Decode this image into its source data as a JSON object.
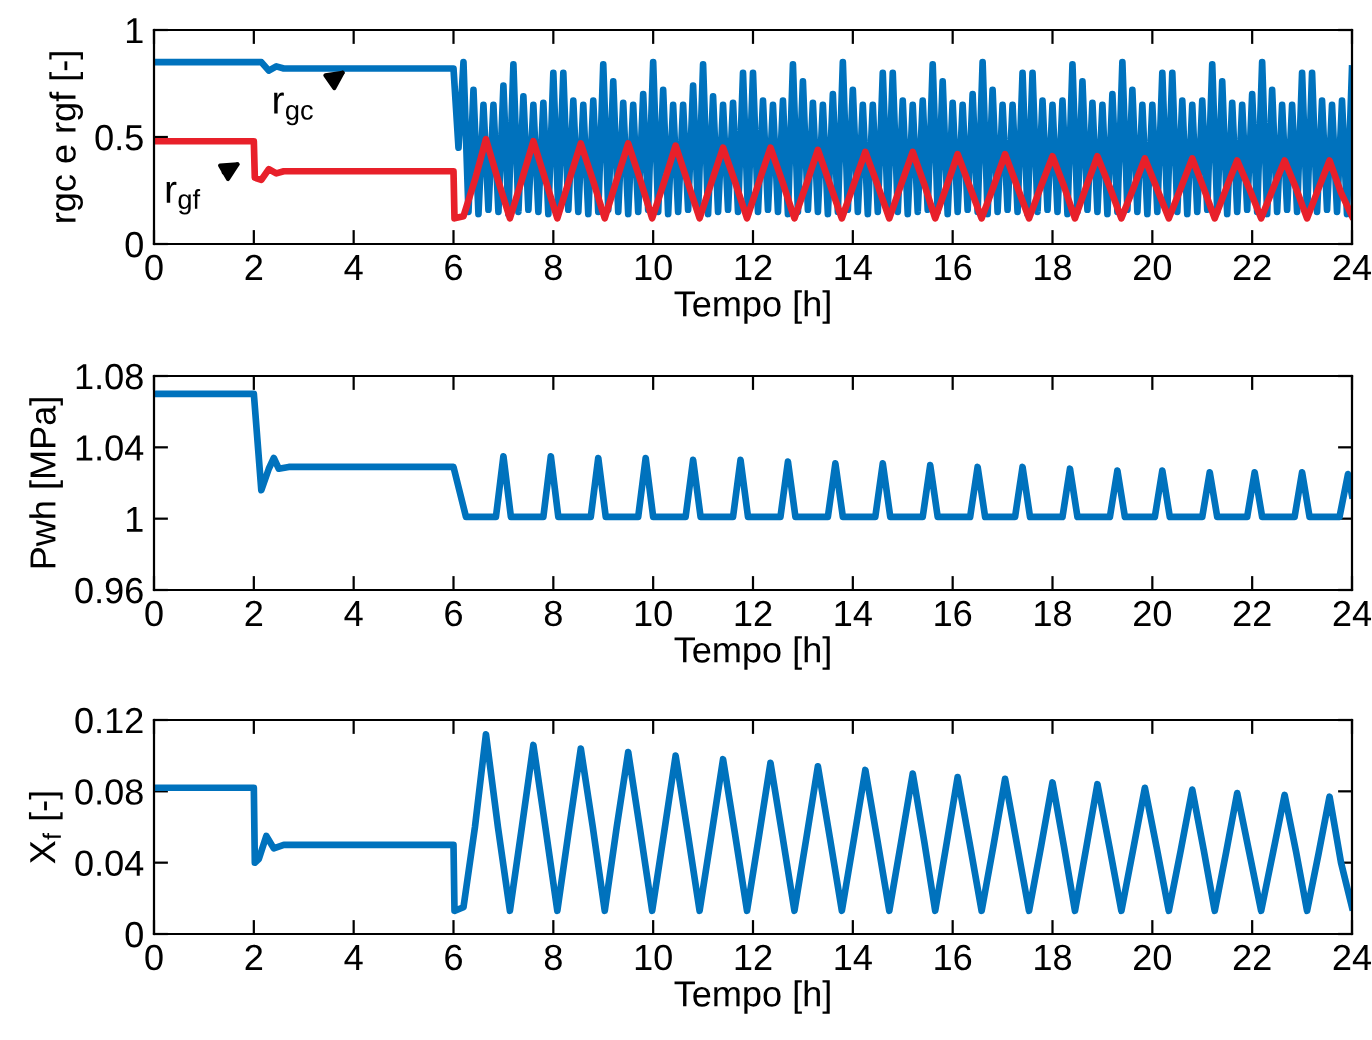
{
  "chart_data": [
    {
      "type": "line",
      "xlabel": "Tempo [h]",
      "ylabel": "rgc e rgf [-]",
      "xlim": [
        0,
        24
      ],
      "xticks": [
        0,
        2,
        4,
        6,
        8,
        10,
        12,
        14,
        16,
        18,
        20,
        22,
        24
      ],
      "ylim": [
        0,
        1
      ],
      "yticks": [
        0,
        {
          "value": 0.5,
          "label": "0.5"
        },
        1
      ],
      "grid": false,
      "legend": false,
      "annotations": [
        {
          "text": "r$_{gc}$",
          "x": 3.9,
          "y": 0.82
        },
        {
          "text": "r$_{gf}$",
          "x": 1.8,
          "y": 0.39
        }
      ],
      "series": [
        {
          "color": "#0072bd",
          "x": [
            0,
            2.0,
            2.15,
            2.3,
            2.45,
            2.6,
            6.0,
            6.1,
            6.2,
            6.3,
            6.4,
            6.5,
            6.6,
            6.7,
            6.8,
            6.9,
            7.0,
            7.1,
            7.2,
            7.3,
            7.4,
            7.5,
            7.6,
            7.7,
            7.8,
            7.9,
            8.0,
            8.1,
            8.2,
            8.3,
            8.4,
            8.5,
            8.6,
            8.7,
            8.8,
            8.9,
            9.0,
            9.1,
            9.2,
            9.3,
            9.4,
            9.5,
            9.6,
            9.7,
            9.8,
            9.9,
            10.0,
            10.1,
            10.2,
            10.3,
            10.4,
            10.5,
            10.6,
            10.7,
            10.8,
            10.9,
            11.0,
            11.1,
            11.2,
            11.3,
            11.4,
            11.5,
            11.6,
            11.7,
            11.8,
            11.9,
            12.0,
            12.1,
            12.2,
            12.3,
            12.4,
            12.5,
            12.6,
            12.7,
            12.8,
            12.9,
            13.0,
            13.1,
            13.2,
            13.3,
            13.4,
            13.5,
            13.6,
            13.7,
            13.8,
            13.9,
            14.0,
            14.1,
            14.2,
            14.3,
            14.4,
            14.5,
            14.6,
            14.7,
            14.8,
            14.9,
            15.0,
            15.1,
            15.2,
            15.3,
            15.4,
            15.5,
            15.6,
            15.7,
            15.8,
            15.9,
            16.0,
            16.1,
            16.2,
            16.3,
            16.4,
            16.5,
            16.6,
            16.7,
            16.8,
            16.9,
            17.0,
            17.1,
            17.2,
            17.3,
            17.4,
            17.5,
            17.6,
            17.7,
            17.8,
            17.9,
            18.0,
            18.1,
            18.2,
            18.3,
            18.4,
            18.5,
            18.6,
            18.7,
            18.8,
            18.9,
            19.0,
            19.1,
            19.2,
            19.3,
            19.4,
            19.5,
            19.6,
            19.7,
            19.8,
            19.9,
            20.0,
            20.1,
            20.2,
            20.3,
            20.4,
            20.5,
            20.6,
            20.7,
            20.8,
            20.9,
            21.0,
            21.1,
            21.2,
            21.3,
            21.4,
            21.5,
            21.6,
            21.7,
            21.8,
            21.9,
            22.0,
            22.1,
            22.2,
            22.3,
            22.4,
            22.5,
            22.6,
            22.7,
            22.8,
            22.9,
            23.0,
            23.1,
            23.2,
            23.3,
            23.4,
            23.5,
            23.6,
            23.7,
            23.8,
            23.9,
            24.0
          ],
          "values": [
            0.85,
            0.85,
            0.85,
            0.81,
            0.83,
            0.82,
            0.82,
            0.45,
            0.85,
            0.15,
            0.72,
            0.14,
            0.65,
            0.16,
            0.65,
            0.15,
            0.74,
            0.14,
            0.84,
            0.15,
            0.69,
            0.16,
            0.65,
            0.15,
            0.66,
            0.14,
            0.8,
            0.15,
            0.8,
            0.16,
            0.67,
            0.15,
            0.65,
            0.14,
            0.67,
            0.15,
            0.84,
            0.16,
            0.76,
            0.15,
            0.66,
            0.14,
            0.65,
            0.15,
            0.7,
            0.16,
            0.85,
            0.15,
            0.72,
            0.14,
            0.65,
            0.15,
            0.65,
            0.16,
            0.74,
            0.15,
            0.84,
            0.14,
            0.69,
            0.15,
            0.65,
            0.16,
            0.66,
            0.15,
            0.8,
            0.14,
            0.8,
            0.15,
            0.67,
            0.16,
            0.65,
            0.15,
            0.67,
            0.14,
            0.84,
            0.15,
            0.76,
            0.16,
            0.66,
            0.15,
            0.65,
            0.14,
            0.7,
            0.15,
            0.85,
            0.16,
            0.72,
            0.15,
            0.65,
            0.14,
            0.65,
            0.15,
            0.8,
            0.16,
            0.8,
            0.15,
            0.67,
            0.14,
            0.65,
            0.15,
            0.67,
            0.16,
            0.84,
            0.15,
            0.76,
            0.14,
            0.66,
            0.15,
            0.65,
            0.16,
            0.7,
            0.15,
            0.85,
            0.14,
            0.72,
            0.15,
            0.65,
            0.16,
            0.65,
            0.15,
            0.8,
            0.14,
            0.8,
            0.15,
            0.67,
            0.16,
            0.65,
            0.15,
            0.67,
            0.14,
            0.84,
            0.15,
            0.76,
            0.16,
            0.66,
            0.15,
            0.65,
            0.14,
            0.7,
            0.15,
            0.85,
            0.16,
            0.72,
            0.15,
            0.65,
            0.14,
            0.65,
            0.15,
            0.8,
            0.16,
            0.8,
            0.15,
            0.67,
            0.14,
            0.65,
            0.15,
            0.67,
            0.16,
            0.84,
            0.15,
            0.76,
            0.14,
            0.66,
            0.15,
            0.65,
            0.16,
            0.7,
            0.15,
            0.85,
            0.14,
            0.72,
            0.15,
            0.65,
            0.16,
            0.65,
            0.15,
            0.8,
            0.14,
            0.8,
            0.15,
            0.67,
            0.16,
            0.65,
            0.15,
            0.67,
            0.14,
            0.82
          ]
        },
        {
          "color": "#e8202a",
          "x": [
            0,
            2.0,
            2.02,
            2.15,
            2.3,
            2.45,
            2.6,
            6.0,
            6.02,
            6.2,
            6.43,
            6.65,
            6.89,
            7.13,
            7.37,
            7.6,
            7.84,
            8.08,
            8.32,
            8.55,
            8.79,
            9.03,
            9.27,
            9.5,
            9.74,
            9.98,
            10.22,
            10.45,
            10.69,
            10.93,
            11.17,
            11.4,
            11.64,
            11.88,
            12.12,
            12.35,
            12.59,
            12.83,
            13.07,
            13.3,
            13.54,
            13.78,
            14.02,
            14.25,
            14.49,
            14.73,
            14.97,
            15.2,
            15.43,
            15.65,
            15.88,
            16.1,
            16.34,
            16.58,
            16.82,
            17.05,
            17.29,
            17.53,
            17.77,
            18.0,
            18.23,
            18.45,
            18.68,
            18.9,
            19.14,
            19.38,
            19.62,
            19.85,
            20.09,
            20.33,
            20.57,
            20.8,
            21.03,
            21.25,
            21.48,
            21.7,
            21.94,
            22.18,
            22.42,
            22.65,
            22.88,
            23.1,
            23.33,
            23.55,
            23.78,
            24.0
          ],
          "values": [
            0.48,
            0.48,
            0.31,
            0.3,
            0.35,
            0.33,
            0.34,
            0.34,
            0.12,
            0.13,
            0.3,
            0.49,
            0.3,
            0.12,
            0.3,
            0.48,
            0.3,
            0.12,
            0.3,
            0.47,
            0.3,
            0.12,
            0.3,
            0.47,
            0.3,
            0.12,
            0.29,
            0.46,
            0.29,
            0.12,
            0.29,
            0.45,
            0.29,
            0.12,
            0.29,
            0.45,
            0.29,
            0.12,
            0.28,
            0.44,
            0.28,
            0.12,
            0.28,
            0.43,
            0.28,
            0.12,
            0.28,
            0.43,
            0.28,
            0.12,
            0.27,
            0.42,
            0.27,
            0.12,
            0.27,
            0.42,
            0.27,
            0.12,
            0.27,
            0.41,
            0.27,
            0.12,
            0.27,
            0.41,
            0.27,
            0.12,
            0.26,
            0.4,
            0.26,
            0.12,
            0.26,
            0.4,
            0.26,
            0.12,
            0.26,
            0.39,
            0.26,
            0.12,
            0.26,
            0.39,
            0.26,
            0.12,
            0.26,
            0.39,
            0.24,
            0.13
          ]
        }
      ]
    },
    {
      "type": "line",
      "xlabel": "Tempo [h]",
      "ylabel": "Pwh [MPa]",
      "xlim": [
        0,
        24
      ],
      "xticks": [
        0,
        2,
        4,
        6,
        8,
        10,
        12,
        14,
        16,
        18,
        20,
        22,
        24
      ],
      "ylim": [
        0.96,
        1.08
      ],
      "yticks": [
        0.96,
        1,
        1.04,
        1.08
      ],
      "grid": false,
      "legend": false,
      "series": [
        {
          "color": "#0072bd",
          "x": [
            0,
            2.0,
            2.15,
            2.3,
            2.4,
            2.5,
            2.7,
            6.0,
            6.25,
            6.85,
            7.0,
            7.15,
            7.8,
            7.95,
            8.1,
            8.75,
            8.9,
            9.05,
            9.7,
            9.85,
            10.0,
            10.65,
            10.8,
            10.95,
            11.6,
            11.75,
            11.9,
            12.55,
            12.7,
            12.85,
            13.5,
            13.65,
            13.8,
            14.45,
            14.6,
            14.75,
            15.4,
            15.55,
            15.7,
            16.35,
            16.5,
            16.65,
            17.25,
            17.4,
            17.55,
            18.2,
            18.35,
            18.5,
            19.15,
            19.3,
            19.45,
            20.05,
            20.2,
            20.35,
            21.0,
            21.15,
            21.3,
            21.9,
            22.05,
            22.2,
            22.85,
            23.0,
            23.15,
            23.75,
            23.92,
            24.0
          ],
          "values": [
            1.07,
            1.07,
            1.016,
            1.028,
            1.034,
            1.028,
            1.029,
            1.029,
            1.001,
            1.001,
            1.035,
            1.001,
            1.001,
            1.035,
            1.001,
            1.001,
            1.034,
            1.001,
            1.001,
            1.034,
            1.001,
            1.001,
            1.033,
            1.001,
            1.001,
            1.033,
            1.001,
            1.001,
            1.032,
            1.001,
            1.001,
            1.031,
            1.001,
            1.001,
            1.031,
            1.001,
            1.001,
            1.03,
            1.001,
            1.001,
            1.029,
            1.001,
            1.001,
            1.029,
            1.001,
            1.001,
            1.028,
            1.001,
            1.001,
            1.027,
            1.001,
            1.001,
            1.027,
            1.001,
            1.001,
            1.026,
            1.001,
            1.001,
            1.026,
            1.001,
            1.001,
            1.026,
            1.001,
            1.001,
            1.025,
            1.013
          ]
        }
      ]
    },
    {
      "type": "line",
      "xlabel": "Tempo [h]",
      "ylabel": "X$_{f}$ [-]",
      "xlim": [
        0,
        24
      ],
      "xticks": [
        0,
        2,
        4,
        6,
        8,
        10,
        12,
        14,
        16,
        18,
        20,
        22,
        24
      ],
      "ylim": [
        0,
        0.12
      ],
      "yticks": [
        0,
        0.04,
        0.08,
        0.12
      ],
      "grid": false,
      "legend": false,
      "series": [
        {
          "color": "#0072bd",
          "x": [
            0,
            2.0,
            2.02,
            2.1,
            2.25,
            2.4,
            2.6,
            6.0,
            6.02,
            6.2,
            6.43,
            6.65,
            6.89,
            7.13,
            7.37,
            7.6,
            7.84,
            8.08,
            8.32,
            8.55,
            8.79,
            9.03,
            9.27,
            9.5,
            9.74,
            9.98,
            10.22,
            10.45,
            10.69,
            10.93,
            11.17,
            11.4,
            11.64,
            11.88,
            12.12,
            12.35,
            12.59,
            12.83,
            13.07,
            13.3,
            13.54,
            13.78,
            14.02,
            14.25,
            14.49,
            14.73,
            14.97,
            15.2,
            15.43,
            15.65,
            15.88,
            16.1,
            16.34,
            16.58,
            16.82,
            17.05,
            17.29,
            17.53,
            17.77,
            18.0,
            18.23,
            18.45,
            18.68,
            18.9,
            19.14,
            19.38,
            19.62,
            19.85,
            20.09,
            20.33,
            20.57,
            20.8,
            21.03,
            21.25,
            21.48,
            21.7,
            21.94,
            22.18,
            22.42,
            22.65,
            22.88,
            23.1,
            23.33,
            23.55,
            23.78,
            24.0
          ],
          "values": [
            0.082,
            0.082,
            0.04,
            0.042,
            0.055,
            0.048,
            0.05,
            0.05,
            0.013,
            0.015,
            0.06,
            0.112,
            0.06,
            0.013,
            0.06,
            0.106,
            0.06,
            0.013,
            0.06,
            0.104,
            0.06,
            0.013,
            0.06,
            0.102,
            0.058,
            0.013,
            0.057,
            0.1,
            0.057,
            0.013,
            0.056,
            0.098,
            0.056,
            0.013,
            0.055,
            0.096,
            0.055,
            0.013,
            0.054,
            0.094,
            0.054,
            0.013,
            0.053,
            0.092,
            0.053,
            0.013,
            0.052,
            0.09,
            0.052,
            0.013,
            0.051,
            0.088,
            0.051,
            0.013,
            0.05,
            0.087,
            0.05,
            0.013,
            0.049,
            0.085,
            0.049,
            0.013,
            0.049,
            0.084,
            0.049,
            0.013,
            0.048,
            0.082,
            0.048,
            0.013,
            0.047,
            0.081,
            0.047,
            0.013,
            0.046,
            0.079,
            0.046,
            0.013,
            0.046,
            0.078,
            0.046,
            0.013,
            0.045,
            0.077,
            0.04,
            0.015
          ]
        }
      ]
    }
  ]
}
